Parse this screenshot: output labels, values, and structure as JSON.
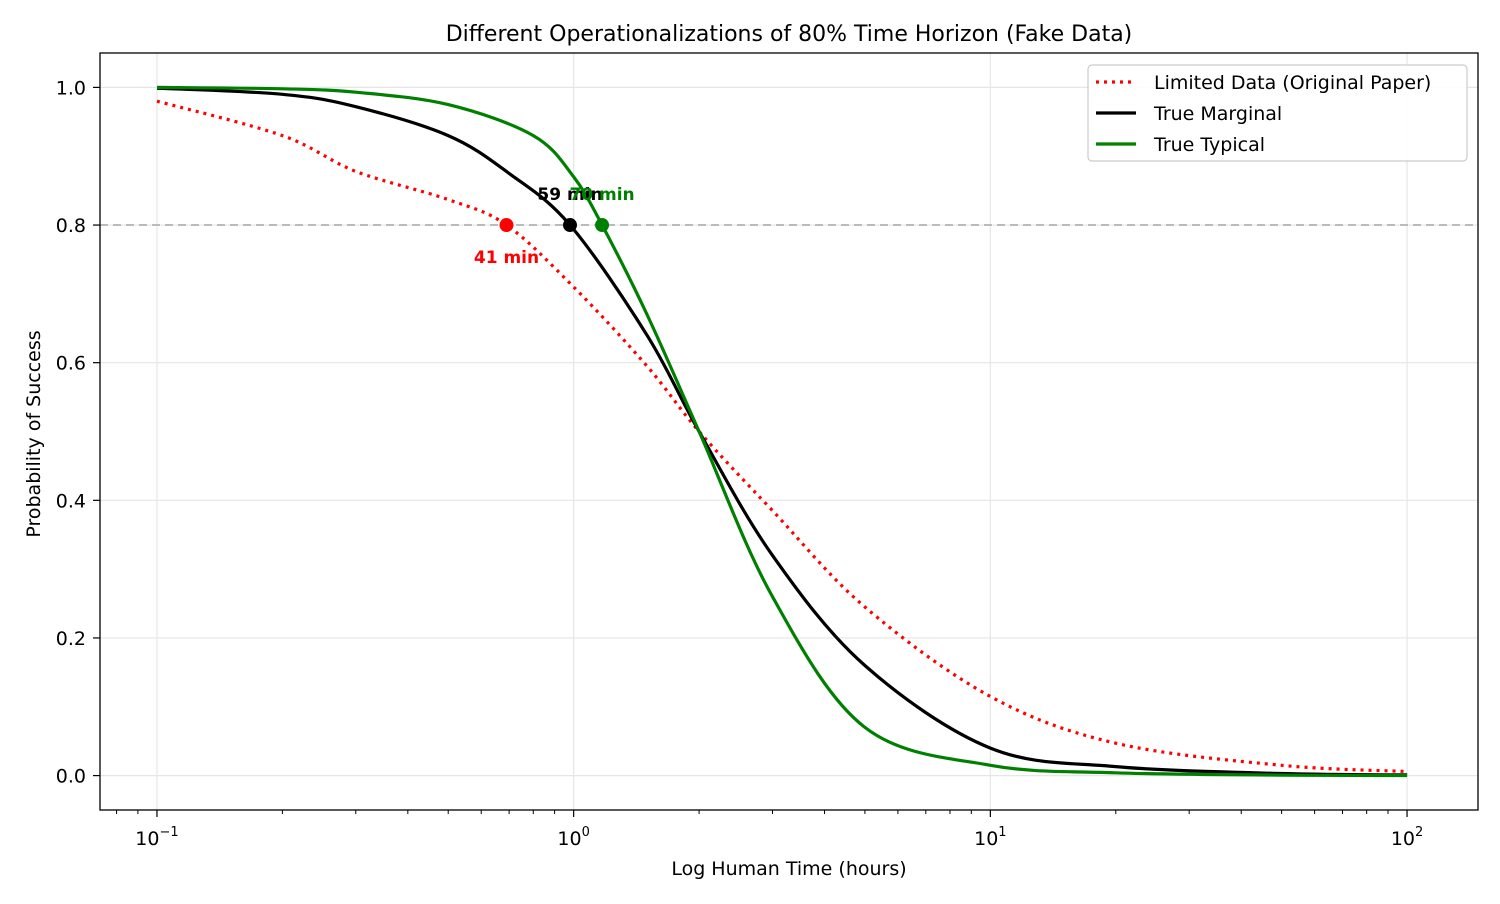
{
  "chart_data": {
    "type": "line",
    "title": "Different Operationalizations of 80% Time Horizon (Fake Data)",
    "xlabel": "Log Human Time (hours)",
    "ylabel": "Probability of Success",
    "x_scale": "log",
    "xlim": [
      0.073,
      148
    ],
    "ylim": [
      -0.05,
      1.05
    ],
    "x_ticks": [
      {
        "value": 0.1,
        "base": "10",
        "exp": "−1"
      },
      {
        "value": 1,
        "base": "10",
        "exp": "0"
      },
      {
        "value": 10,
        "base": "10",
        "exp": "1"
      },
      {
        "value": 100,
        "base": "10",
        "exp": "2"
      }
    ],
    "y_ticks": [
      0.0,
      0.2,
      0.4,
      0.6,
      0.8,
      1.0
    ],
    "grid": true,
    "reference_line": {
      "y": 0.8,
      "style": "dashed",
      "color": "#bbbbbb"
    },
    "legend_position": "top-right",
    "series": [
      {
        "name": "Limited Data (Original Paper)",
        "color": "#ff0000",
        "style": "dotted",
        "x": [
          0.1,
          0.2,
          0.3,
          0.5,
          0.69,
          1.0,
          1.5,
          2.0,
          3.0,
          5.0,
          10.0,
          20.0,
          50.0,
          100.0
        ],
        "y": [
          0.98,
          0.93,
          0.878,
          0.837,
          0.8,
          0.71,
          0.595,
          0.5,
          0.385,
          0.245,
          0.115,
          0.047,
          0.015,
          0.006
        ]
      },
      {
        "name": "True Marginal",
        "color": "#000000",
        "style": "solid",
        "x": [
          0.1,
          0.2,
          0.3,
          0.5,
          0.7,
          0.98,
          1.5,
          2.0,
          3.0,
          5.0,
          10.0,
          20.0,
          50.0,
          100.0
        ],
        "y": [
          0.999,
          0.99,
          0.972,
          0.93,
          0.875,
          0.8,
          0.64,
          0.5,
          0.32,
          0.16,
          0.04,
          0.013,
          0.003,
          0.001
        ]
      },
      {
        "name": "True Typical",
        "color": "#008000",
        "style": "solid",
        "x": [
          0.1,
          0.2,
          0.3,
          0.5,
          0.8,
          1.0,
          1.17,
          1.5,
          2.0,
          3.0,
          5.0,
          10.0,
          20.0,
          50.0,
          100.0
        ],
        "y": [
          1.0,
          0.998,
          0.993,
          0.975,
          0.93,
          0.87,
          0.8,
          0.67,
          0.5,
          0.26,
          0.07,
          0.015,
          0.004,
          0.0007,
          0.0001
        ]
      }
    ],
    "points": [
      {
        "x": 0.69,
        "y": 0.8,
        "color": "#ff0000",
        "label": "41 min",
        "label_pos": "below"
      },
      {
        "x": 0.98,
        "y": 0.8,
        "color": "#000000",
        "label": "59 min",
        "label_pos": "above"
      },
      {
        "x": 1.17,
        "y": 0.8,
        "color": "#008000",
        "label": "70 min",
        "label_pos": "above"
      }
    ]
  }
}
